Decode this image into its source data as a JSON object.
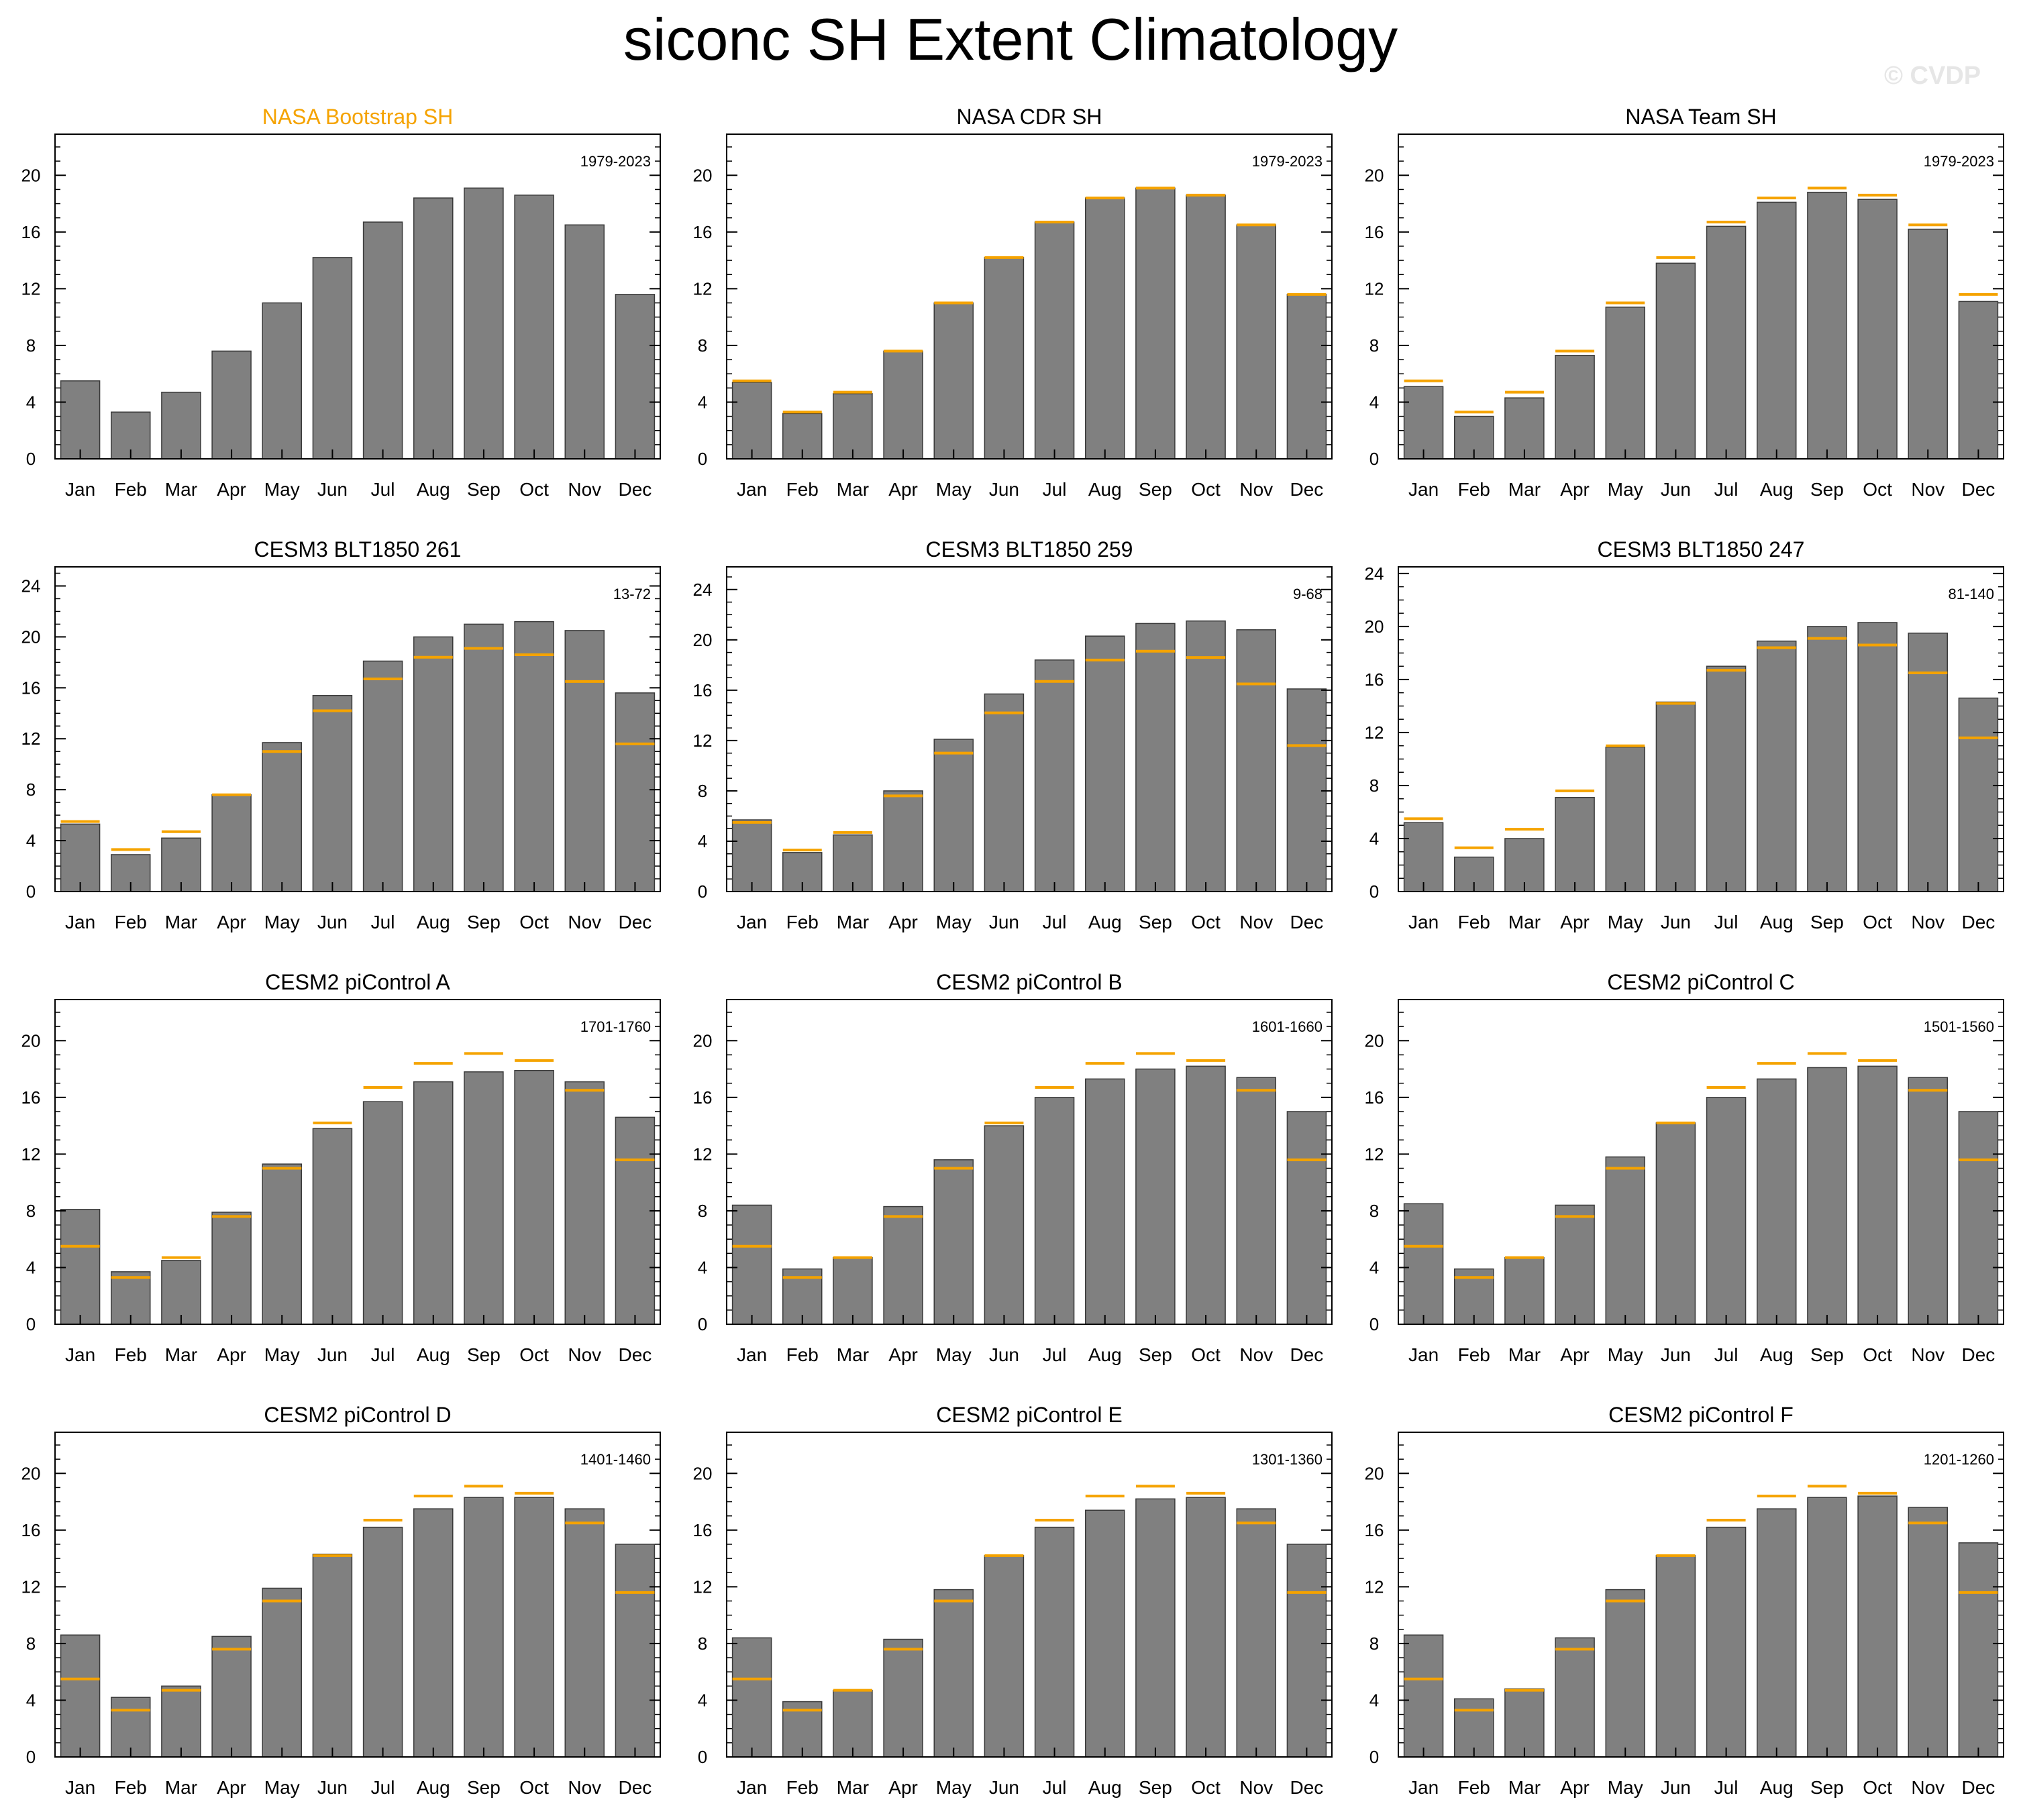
{
  "page": {
    "title": "siconc SH Extent Climatology",
    "watermark": "© CVDP"
  },
  "colors": {
    "bar": "#808080",
    "bar_outline": "#3a3a3a",
    "reference_line": "#f5a300",
    "highlight_title": "#f5a300",
    "axis": "#000000"
  },
  "chart_data": [
    {
      "type": "bar",
      "title": "NASA Bootstrap SH",
      "title_highlight": true,
      "period": "1979-2023",
      "categories": [
        "Jan",
        "Feb",
        "Mar",
        "Apr",
        "May",
        "Jun",
        "Jul",
        "Aug",
        "Sep",
        "Oct",
        "Nov",
        "Dec"
      ],
      "values": [
        5.5,
        3.3,
        4.7,
        7.6,
        11.0,
        14.2,
        16.7,
        18.4,
        19.1,
        18.6,
        16.5,
        11.6
      ],
      "reference": null,
      "yticks": [
        0,
        4,
        8,
        12,
        16,
        20
      ],
      "ylim": [
        0,
        22.9
      ]
    },
    {
      "type": "bar",
      "title": "NASA CDR SH",
      "period": "1979-2023",
      "categories": [
        "Jan",
        "Feb",
        "Mar",
        "Apr",
        "May",
        "Jun",
        "Jul",
        "Aug",
        "Sep",
        "Oct",
        "Nov",
        "Dec"
      ],
      "values": [
        5.4,
        3.2,
        4.6,
        7.6,
        11.0,
        14.2,
        16.7,
        18.4,
        19.1,
        18.6,
        16.5,
        11.6
      ],
      "reference": [
        5.5,
        3.3,
        4.7,
        7.6,
        11.0,
        14.2,
        16.7,
        18.4,
        19.1,
        18.6,
        16.5,
        11.6
      ],
      "yticks": [
        0,
        4,
        8,
        12,
        16,
        20
      ],
      "ylim": [
        0,
        22.9
      ]
    },
    {
      "type": "bar",
      "title": "NASA Team SH",
      "period": "1979-2023",
      "categories": [
        "Jan",
        "Feb",
        "Mar",
        "Apr",
        "May",
        "Jun",
        "Jul",
        "Aug",
        "Sep",
        "Oct",
        "Nov",
        "Dec"
      ],
      "values": [
        5.1,
        3.0,
        4.3,
        7.3,
        10.7,
        13.8,
        16.4,
        18.1,
        18.8,
        18.3,
        16.2,
        11.1
      ],
      "reference": [
        5.5,
        3.3,
        4.7,
        7.6,
        11.0,
        14.2,
        16.7,
        18.4,
        19.1,
        18.6,
        16.5,
        11.6
      ],
      "yticks": [
        0,
        4,
        8,
        12,
        16,
        20
      ],
      "ylim": [
        0,
        22.9
      ]
    },
    {
      "type": "bar",
      "title": "CESM3 BLT1850 261",
      "period": "13-72",
      "categories": [
        "Jan",
        "Feb",
        "Mar",
        "Apr",
        "May",
        "Jun",
        "Jul",
        "Aug",
        "Sep",
        "Oct",
        "Nov",
        "Dec"
      ],
      "values": [
        5.3,
        2.9,
        4.2,
        7.6,
        11.7,
        15.4,
        18.1,
        20.0,
        21.0,
        21.2,
        20.5,
        15.6
      ],
      "reference": [
        5.5,
        3.3,
        4.7,
        7.6,
        11.0,
        14.2,
        16.7,
        18.4,
        19.1,
        18.6,
        16.5,
        11.6
      ],
      "yticks": [
        0,
        4,
        8,
        12,
        16,
        20,
        24
      ],
      "ylim": [
        0,
        25.5
      ]
    },
    {
      "type": "bar",
      "title": "CESM3 BLT1850 259",
      "period": "9-68",
      "categories": [
        "Jan",
        "Feb",
        "Mar",
        "Apr",
        "May",
        "Jun",
        "Jul",
        "Aug",
        "Sep",
        "Oct",
        "Nov",
        "Dec"
      ],
      "values": [
        5.7,
        3.1,
        4.5,
        8.0,
        12.1,
        15.7,
        18.4,
        20.3,
        21.3,
        21.5,
        20.8,
        16.1
      ],
      "reference": [
        5.5,
        3.3,
        4.7,
        7.6,
        11.0,
        14.2,
        16.7,
        18.4,
        19.1,
        18.6,
        16.5,
        11.6
      ],
      "yticks": [
        0,
        4,
        8,
        12,
        16,
        20,
        24
      ],
      "ylim": [
        0,
        25.8
      ]
    },
    {
      "type": "bar",
      "title": "CESM3 BLT1850 247",
      "period": "81-140",
      "categories": [
        "Jan",
        "Feb",
        "Mar",
        "Apr",
        "May",
        "Jun",
        "Jul",
        "Aug",
        "Sep",
        "Oct",
        "Nov",
        "Dec"
      ],
      "values": [
        5.2,
        2.6,
        4.0,
        7.1,
        10.9,
        14.3,
        17.0,
        18.9,
        20.0,
        20.3,
        19.5,
        14.6
      ],
      "reference": [
        5.5,
        3.3,
        4.7,
        7.6,
        11.0,
        14.2,
        16.7,
        18.4,
        19.1,
        18.6,
        16.5,
        11.6
      ],
      "yticks": [
        0,
        4,
        8,
        12,
        16,
        20,
        24
      ],
      "ylim": [
        0,
        24.5
      ]
    },
    {
      "type": "bar",
      "title": "CESM2 piControl A",
      "period": "1701-1760",
      "categories": [
        "Jan",
        "Feb",
        "Mar",
        "Apr",
        "May",
        "Jun",
        "Jul",
        "Aug",
        "Sep",
        "Oct",
        "Nov",
        "Dec"
      ],
      "values": [
        8.1,
        3.7,
        4.5,
        7.9,
        11.3,
        13.8,
        15.7,
        17.1,
        17.8,
        17.9,
        17.1,
        14.6
      ],
      "reference": [
        5.5,
        3.3,
        4.7,
        7.6,
        11.0,
        14.2,
        16.7,
        18.4,
        19.1,
        18.6,
        16.5,
        11.6
      ],
      "yticks": [
        0,
        4,
        8,
        12,
        16,
        20
      ],
      "ylim": [
        0,
        22.9
      ]
    },
    {
      "type": "bar",
      "title": "CESM2 piControl B",
      "period": "1601-1660",
      "categories": [
        "Jan",
        "Feb",
        "Mar",
        "Apr",
        "May",
        "Jun",
        "Jul",
        "Aug",
        "Sep",
        "Oct",
        "Nov",
        "Dec"
      ],
      "values": [
        8.4,
        3.9,
        4.7,
        8.3,
        11.6,
        14.0,
        16.0,
        17.3,
        18.0,
        18.2,
        17.4,
        15.0
      ],
      "reference": [
        5.5,
        3.3,
        4.7,
        7.6,
        11.0,
        14.2,
        16.7,
        18.4,
        19.1,
        18.6,
        16.5,
        11.6
      ],
      "yticks": [
        0,
        4,
        8,
        12,
        16,
        20
      ],
      "ylim": [
        0,
        22.9
      ]
    },
    {
      "type": "bar",
      "title": "CESM2 piControl C",
      "period": "1501-1560",
      "categories": [
        "Jan",
        "Feb",
        "Mar",
        "Apr",
        "May",
        "Jun",
        "Jul",
        "Aug",
        "Sep",
        "Oct",
        "Nov",
        "Dec"
      ],
      "values": [
        8.5,
        3.9,
        4.7,
        8.4,
        11.8,
        14.2,
        16.0,
        17.3,
        18.1,
        18.2,
        17.4,
        15.0
      ],
      "reference": [
        5.5,
        3.3,
        4.7,
        7.6,
        11.0,
        14.2,
        16.7,
        18.4,
        19.1,
        18.6,
        16.5,
        11.6
      ],
      "yticks": [
        0,
        4,
        8,
        12,
        16,
        20
      ],
      "ylim": [
        0,
        22.9
      ]
    },
    {
      "type": "bar",
      "title": "CESM2 piControl D",
      "period": "1401-1460",
      "categories": [
        "Jan",
        "Feb",
        "Mar",
        "Apr",
        "May",
        "Jun",
        "Jul",
        "Aug",
        "Sep",
        "Oct",
        "Nov",
        "Dec"
      ],
      "values": [
        8.6,
        4.2,
        5.0,
        8.5,
        11.9,
        14.3,
        16.2,
        17.5,
        18.3,
        18.3,
        17.5,
        15.0
      ],
      "reference": [
        5.5,
        3.3,
        4.7,
        7.6,
        11.0,
        14.2,
        16.7,
        18.4,
        19.1,
        18.6,
        16.5,
        11.6
      ],
      "yticks": [
        0,
        4,
        8,
        12,
        16,
        20
      ],
      "ylim": [
        0,
        22.9
      ]
    },
    {
      "type": "bar",
      "title": "CESM2 piControl E",
      "period": "1301-1360",
      "categories": [
        "Jan",
        "Feb",
        "Mar",
        "Apr",
        "May",
        "Jun",
        "Jul",
        "Aug",
        "Sep",
        "Oct",
        "Nov",
        "Dec"
      ],
      "values": [
        8.4,
        3.9,
        4.7,
        8.3,
        11.8,
        14.2,
        16.2,
        17.4,
        18.2,
        18.3,
        17.5,
        15.0
      ],
      "reference": [
        5.5,
        3.3,
        4.7,
        7.6,
        11.0,
        14.2,
        16.7,
        18.4,
        19.1,
        18.6,
        16.5,
        11.6
      ],
      "yticks": [
        0,
        4,
        8,
        12,
        16,
        20
      ],
      "ylim": [
        0,
        22.9
      ]
    },
    {
      "type": "bar",
      "title": "CESM2 piControl F",
      "period": "1201-1260",
      "categories": [
        "Jan",
        "Feb",
        "Mar",
        "Apr",
        "May",
        "Jun",
        "Jul",
        "Aug",
        "Sep",
        "Oct",
        "Nov",
        "Dec"
      ],
      "values": [
        8.6,
        4.1,
        4.8,
        8.4,
        11.8,
        14.2,
        16.2,
        17.5,
        18.3,
        18.4,
        17.6,
        15.1
      ],
      "reference": [
        5.5,
        3.3,
        4.7,
        7.6,
        11.0,
        14.2,
        16.7,
        18.4,
        19.1,
        18.6,
        16.5,
        11.6
      ],
      "yticks": [
        0,
        4,
        8,
        12,
        16,
        20
      ],
      "ylim": [
        0,
        22.9
      ]
    }
  ]
}
